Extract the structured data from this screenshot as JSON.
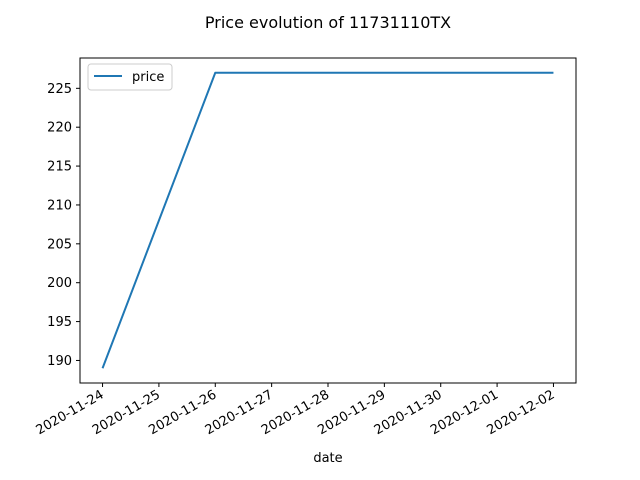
{
  "chart_data": {
    "type": "line",
    "title": "Price evolution of 11731110TX",
    "xlabel": "date",
    "ylabel": "",
    "x": [
      "2020-11-24",
      "2020-11-25",
      "2020-11-26",
      "2020-11-27",
      "2020-11-28",
      "2020-11-29",
      "2020-11-30",
      "2020-12-01",
      "2020-12-02"
    ],
    "x_ticks": [
      "2020-11-24",
      "2020-11-25",
      "2020-11-26",
      "2020-11-27",
      "2020-11-28",
      "2020-11-29",
      "2020-11-30",
      "2020-12-01",
      "2020-12-02"
    ],
    "xlim": [
      "2020-11-23T14:24",
      "2020-12-02T09:36"
    ],
    "y_ticks": [
      190,
      195,
      200,
      205,
      210,
      215,
      220,
      225
    ],
    "ylim": [
      187.1,
      228.9
    ],
    "series": [
      {
        "name": "price",
        "values": [
          189,
          208,
          227,
          227,
          227,
          227,
          227,
          227,
          227
        ],
        "color": "#1f77b4"
      }
    ],
    "legend_position": "top-left",
    "grid": false
  }
}
